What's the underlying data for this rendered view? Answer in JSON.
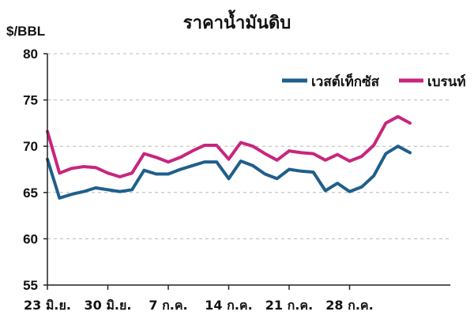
{
  "chart_data": {
    "type": "line",
    "title": "ราคาน้ำมันดิบ",
    "ylabel": "$/BBL",
    "xlabel": "",
    "ylim": [
      55,
      80
    ],
    "yticks": [
      55,
      60,
      65,
      70,
      75,
      80
    ],
    "grid": true,
    "legend_position": "top-right",
    "x_tick_labels": [
      "23 มิ.ย.",
      "30 มิ.ย.",
      "7 ก.ค.",
      "14 ก.ค.",
      "21 ก.ค.",
      "28 ก.ค."
    ],
    "x_tick_indices": [
      0,
      5,
      10,
      15,
      20,
      25
    ],
    "series": [
      {
        "name": "เวสต์เท็กซัส",
        "color": "#1f5f8b",
        "values": [
          68.6,
          64.4,
          64.8,
          65.1,
          65.5,
          65.3,
          65.1,
          65.3,
          67.4,
          67.0,
          67.0,
          67.5,
          67.9,
          68.3,
          68.3,
          66.5,
          68.4,
          67.9,
          67.0,
          66.5,
          67.5,
          67.3,
          67.2,
          65.2,
          66.0,
          65.1,
          65.6,
          66.8,
          69.2,
          70.0,
          69.3
        ]
      },
      {
        "name": "เบรนท์",
        "color": "#c8267d",
        "values": [
          71.6,
          67.1,
          67.6,
          67.8,
          67.7,
          67.1,
          66.7,
          67.1,
          69.2,
          68.8,
          68.3,
          68.8,
          69.5,
          70.1,
          70.1,
          68.6,
          70.4,
          70.0,
          69.2,
          68.5,
          69.5,
          69.3,
          69.2,
          68.5,
          69.1,
          68.4,
          68.9,
          70.1,
          72.5,
          73.2,
          72.5
        ]
      }
    ]
  }
}
